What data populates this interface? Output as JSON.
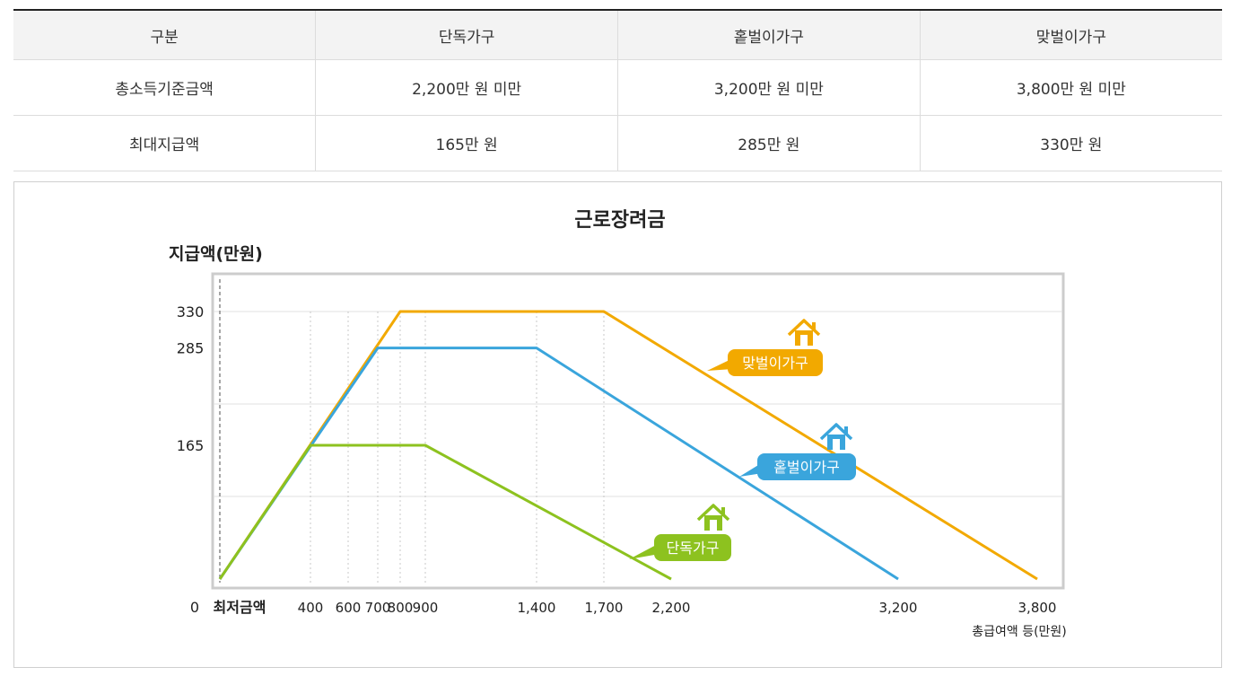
{
  "table": {
    "headers": [
      "구분",
      "단독가구",
      "홑벌이가구",
      "맞벌이가구"
    ],
    "rows": [
      [
        "총소득기준금액",
        "2,200만 원 미만",
        "3,200만 원 미만",
        "3,800만 원 미만"
      ],
      [
        "최대지급액",
        "165만 원",
        "285만 원",
        "330만 원"
      ]
    ]
  },
  "chart_data": {
    "type": "line",
    "title": "근로장려금",
    "ylabel": "지급액(만원)",
    "xlabel": "총급여액 등(만원)",
    "min_label": "최저금액",
    "origin_label": "0",
    "x_ticks": [
      400,
      600,
      700,
      800,
      900,
      1400,
      1700,
      2200,
      3200,
      3800
    ],
    "x_tick_labels": [
      "400",
      "600",
      "700",
      "800",
      "900",
      "1,400",
      "1,700",
      "2,200",
      "3,200",
      "3,800"
    ],
    "y_ticks": [
      165,
      285,
      330
    ],
    "y_tick_labels": [
      "165",
      "285",
      "330"
    ],
    "series": [
      {
        "name": "맞벌이가구",
        "color": "#f2a900",
        "x": [
          0,
          800,
          1700,
          3800
        ],
        "y": [
          0,
          330,
          330,
          0
        ]
      },
      {
        "name": "홑벌이가구",
        "color": "#3aa5dc",
        "x": [
          0,
          700,
          1400,
          3200
        ],
        "y": [
          0,
          285,
          285,
          0
        ]
      },
      {
        "name": "단독가구",
        "color": "#8dc21f",
        "x": [
          0,
          400,
          900,
          2200
        ],
        "y": [
          0,
          165,
          165,
          0
        ]
      }
    ],
    "icons": [
      "house-icon",
      "house-icon",
      "house-icon"
    ],
    "grid": true,
    "xlim": [
      0,
      3800
    ],
    "ylim": [
      0,
      330
    ]
  }
}
